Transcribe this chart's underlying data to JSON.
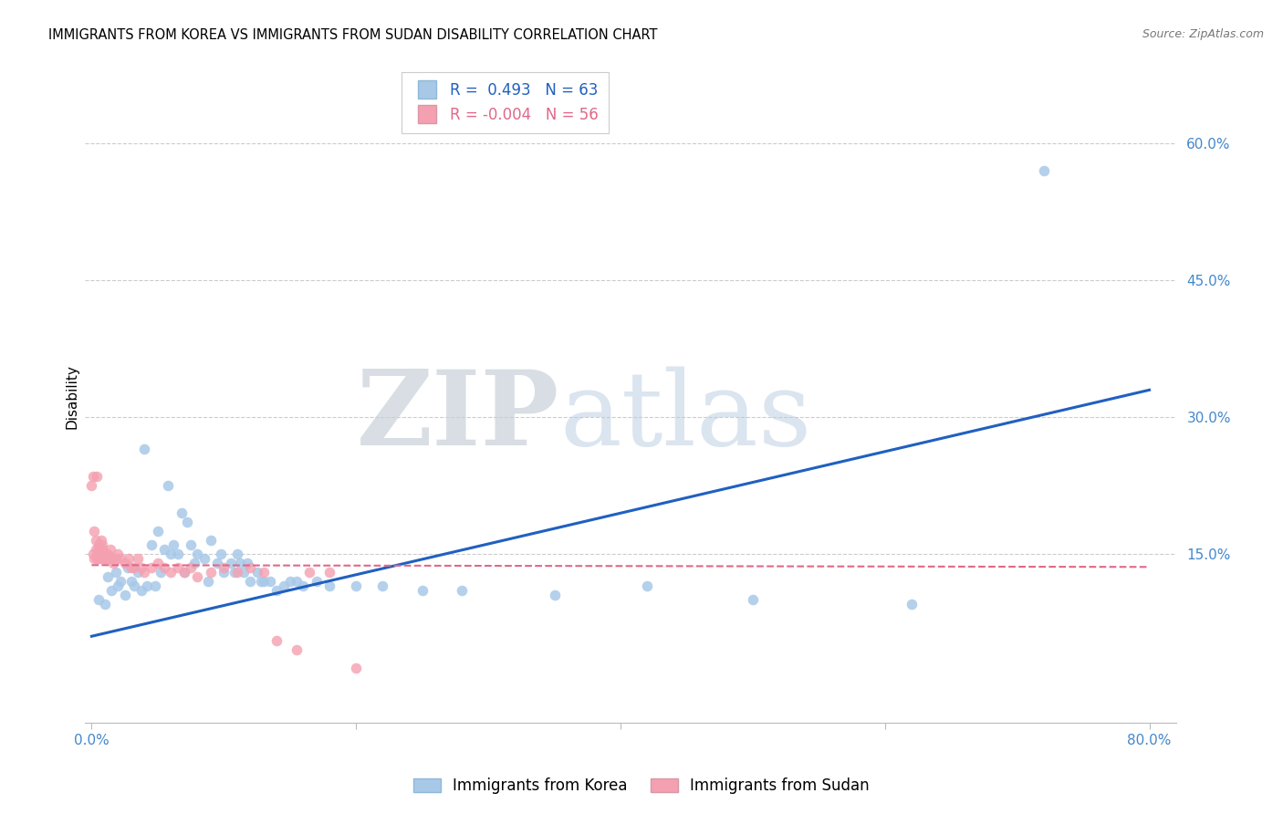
{
  "title": "IMMIGRANTS FROM KOREA VS IMMIGRANTS FROM SUDAN DISABILITY CORRELATION CHART",
  "source": "Source: ZipAtlas.com",
  "ylabel": "Disability",
  "xlim": [
    -0.005,
    0.82
  ],
  "ylim": [
    -0.035,
    0.68
  ],
  "xticks": [
    0.0,
    0.2,
    0.4,
    0.6,
    0.8
  ],
  "xtick_labels": [
    "0.0%",
    "",
    "",
    "",
    "80.0%"
  ],
  "yticks": [
    0.15,
    0.3,
    0.45,
    0.6
  ],
  "ytick_labels": [
    "15.0%",
    "30.0%",
    "45.0%",
    "60.0%"
  ],
  "korea_color": "#a8c8e8",
  "sudan_color": "#f4a0b0",
  "korea_line_color": "#2060c0",
  "sudan_line_color": "#e06888",
  "axis_tick_color": "#4488cc",
  "legend_korea_label": "R =  0.493   N = 63",
  "legend_sudan_label": "R = -0.004   N = 56",
  "bottom_korea_label": "Immigrants from Korea",
  "bottom_sudan_label": "Immigrants from Sudan",
  "korea_x": [
    0.005,
    0.01,
    0.012,
    0.015,
    0.018,
    0.02,
    0.022,
    0.025,
    0.027,
    0.03,
    0.032,
    0.035,
    0.038,
    0.04,
    0.042,
    0.045,
    0.048,
    0.05,
    0.052,
    0.055,
    0.058,
    0.06,
    0.062,
    0.065,
    0.068,
    0.07,
    0.072,
    0.075,
    0.078,
    0.08,
    0.085,
    0.088,
    0.09,
    0.095,
    0.098,
    0.1,
    0.105,
    0.108,
    0.11,
    0.112,
    0.115,
    0.118,
    0.12,
    0.125,
    0.128,
    0.13,
    0.135,
    0.14,
    0.145,
    0.15,
    0.155,
    0.16,
    0.17,
    0.18,
    0.2,
    0.22,
    0.25,
    0.28,
    0.35,
    0.42,
    0.5,
    0.62,
    0.72
  ],
  "korea_y": [
    0.1,
    0.095,
    0.125,
    0.11,
    0.13,
    0.115,
    0.12,
    0.105,
    0.135,
    0.12,
    0.115,
    0.13,
    0.11,
    0.265,
    0.115,
    0.16,
    0.115,
    0.175,
    0.13,
    0.155,
    0.225,
    0.15,
    0.16,
    0.15,
    0.195,
    0.13,
    0.185,
    0.16,
    0.14,
    0.15,
    0.145,
    0.12,
    0.165,
    0.14,
    0.15,
    0.13,
    0.14,
    0.13,
    0.15,
    0.14,
    0.13,
    0.14,
    0.12,
    0.13,
    0.12,
    0.12,
    0.12,
    0.11,
    0.115,
    0.12,
    0.12,
    0.115,
    0.12,
    0.115,
    0.115,
    0.115,
    0.11,
    0.11,
    0.105,
    0.115,
    0.1,
    0.095,
    0.57
  ],
  "sudan_x": [
    0.0,
    0.001,
    0.001,
    0.002,
    0.002,
    0.003,
    0.003,
    0.004,
    0.004,
    0.005,
    0.005,
    0.005,
    0.006,
    0.006,
    0.007,
    0.007,
    0.008,
    0.008,
    0.009,
    0.009,
    0.01,
    0.01,
    0.011,
    0.012,
    0.013,
    0.014,
    0.015,
    0.016,
    0.018,
    0.02,
    0.022,
    0.025,
    0.028,
    0.03,
    0.032,
    0.035,
    0.038,
    0.04,
    0.045,
    0.05,
    0.055,
    0.06,
    0.065,
    0.07,
    0.075,
    0.08,
    0.09,
    0.1,
    0.11,
    0.12,
    0.13,
    0.14,
    0.155,
    0.165,
    0.18,
    0.2
  ],
  "sudan_y": [
    0.225,
    0.235,
    0.15,
    0.145,
    0.175,
    0.165,
    0.155,
    0.235,
    0.145,
    0.155,
    0.16,
    0.145,
    0.15,
    0.155,
    0.165,
    0.145,
    0.155,
    0.16,
    0.145,
    0.15,
    0.145,
    0.15,
    0.145,
    0.15,
    0.145,
    0.155,
    0.145,
    0.14,
    0.145,
    0.15,
    0.145,
    0.14,
    0.145,
    0.135,
    0.135,
    0.145,
    0.135,
    0.13,
    0.135,
    0.14,
    0.135,
    0.13,
    0.135,
    0.13,
    0.135,
    0.125,
    0.13,
    0.135,
    0.13,
    0.135,
    0.13,
    0.055,
    0.045,
    0.13,
    0.13,
    0.025
  ],
  "korea_trend_x": [
    0.0,
    0.8
  ],
  "korea_trend_y": [
    0.06,
    0.33
  ],
  "sudan_trend_x": [
    0.0,
    0.8
  ],
  "sudan_trend_y": [
    0.138,
    0.136
  ],
  "watermark_zip": "ZIP",
  "watermark_atlas": "atlas",
  "bg_color": "#ffffff",
  "grid_color": "#cccccc"
}
